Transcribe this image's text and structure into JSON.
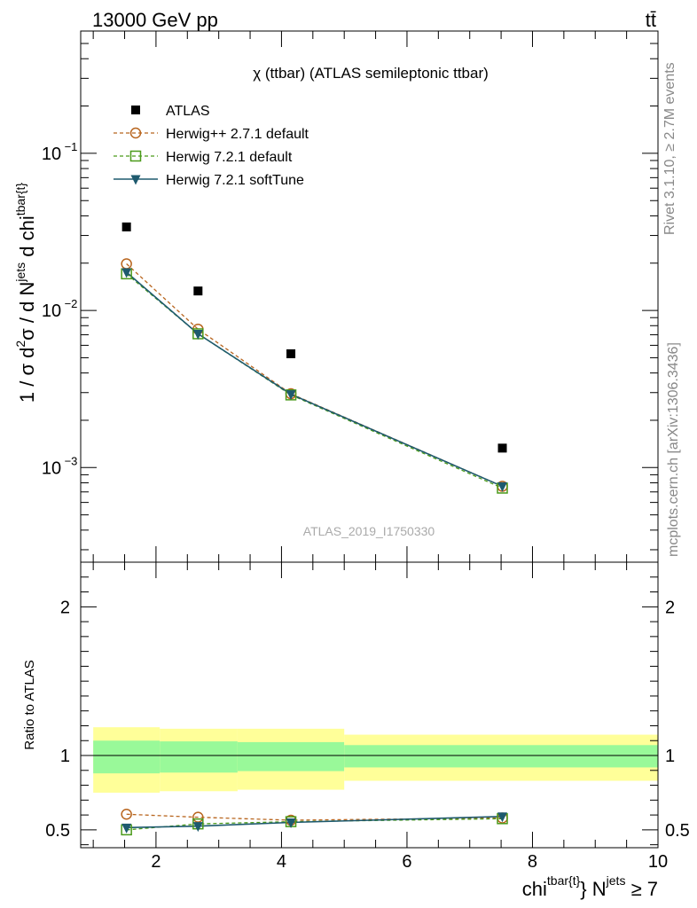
{
  "header": {
    "left": "13000 GeV pp",
    "right": "tt̄"
  },
  "side_text": {
    "rivet": "Rivet 3.1.10, ≥ 2.7M events",
    "site": "mcplots.cern.ch [arXiv:1306.3436]"
  },
  "chart_data": [
    {
      "type": "scatter",
      "title": "χ (ttbar) (ATLAS semileptonic ttbar)",
      "watermark": "ATLAS_2019_I1750330",
      "ylabel": "1 / σ d²σ / d N^jets d chi^tbar{t}",
      "yscale": "log",
      "ylim": [
        0.00025,
        0.6
      ],
      "xlim": [
        0.8,
        10
      ],
      "yticks": [
        "10^{-3}",
        "10^{-2}",
        "10^{-1}"
      ],
      "legend_position": "top-left",
      "series": [
        {
          "name": "ATLAS",
          "color": "#000000",
          "marker": "filled-square",
          "line": "none",
          "x": [
            1.53,
            2.67,
            4.15,
            7.52
          ],
          "y": [
            0.034,
            0.0133,
            0.0053,
            0.00133
          ]
        },
        {
          "name": "Herwig++ 2.7.1 default",
          "color": "#b8651e",
          "marker": "open-circle",
          "line": "dashed",
          "x": [
            1.53,
            2.67,
            4.15,
            7.52
          ],
          "y": [
            0.0198,
            0.0076,
            0.00295,
            0.00076
          ]
        },
        {
          "name": "Herwig 7.2.1 default",
          "color": "#4a9a1a",
          "marker": "open-square",
          "line": "dashed",
          "x": [
            1.53,
            2.67,
            4.15,
            7.52
          ],
          "y": [
            0.0171,
            0.0071,
            0.0029,
            0.00074
          ]
        },
        {
          "name": "Herwig 7.2.1 softTune",
          "color": "#1e5a6e",
          "marker": "filled-triangle-down",
          "line": "solid",
          "x": [
            1.53,
            2.67,
            4.15,
            7.52
          ],
          "y": [
            0.0175,
            0.0071,
            0.00293,
            0.00076
          ]
        }
      ]
    },
    {
      "type": "line",
      "ylabel": "Ratio to ATLAS",
      "xlabel": "chi^tbar{t} N^jets ≥ 7",
      "xlim": [
        0.8,
        10
      ],
      "ylim": [
        0.38,
        2.3
      ],
      "xticks": [
        2,
        4,
        6,
        8,
        10
      ],
      "yticks": [
        0.5,
        1,
        2
      ],
      "bands": [
        {
          "x0": 1.0,
          "x1": 2.06,
          "lo2": 0.75,
          "hi2": 1.19,
          "lo1": 0.88,
          "hi1": 1.1
        },
        {
          "x0": 2.06,
          "x1": 3.3,
          "lo2": 0.76,
          "hi2": 1.18,
          "lo1": 0.885,
          "hi1": 1.095
        },
        {
          "x0": 3.3,
          "x1": 5.0,
          "lo2": 0.77,
          "hi2": 1.18,
          "lo1": 0.895,
          "hi1": 1.09
        },
        {
          "x0": 5.0,
          "x1": 10.0,
          "lo2": 0.83,
          "hi2": 1.14,
          "lo1": 0.92,
          "hi1": 1.07
        }
      ],
      "series": [
        {
          "name": "Herwig++ 2.7.1 default",
          "color": "#b8651e",
          "marker": "open-circle",
          "line": "dashed",
          "x": [
            1.53,
            2.67,
            4.15,
            7.52
          ],
          "y": [
            0.605,
            0.585,
            0.565,
            0.58
          ]
        },
        {
          "name": "Herwig 7.2.1 default",
          "color": "#4a9a1a",
          "marker": "open-square",
          "line": "dashed",
          "x": [
            1.53,
            2.67,
            4.15,
            7.52
          ],
          "y": [
            0.5,
            0.54,
            0.555,
            0.575
          ]
        },
        {
          "name": "Herwig 7.2.1 softTune",
          "color": "#1e5a6e",
          "marker": "filled-triangle-down",
          "line": "solid",
          "x": [
            1.53,
            2.67,
            4.15,
            7.52
          ],
          "y": [
            0.515,
            0.525,
            0.55,
            0.59
          ]
        }
      ]
    }
  ]
}
